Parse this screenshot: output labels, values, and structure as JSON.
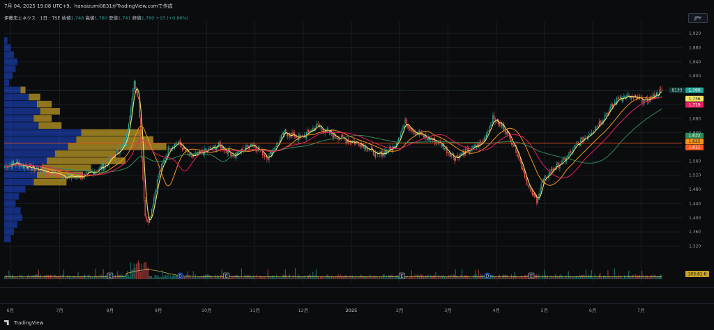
{
  "header": {
    "timestamp_line": "7月 04, 2025 19:08 UTC+9、hanaizumi0831がTradingView.comで作成"
  },
  "legend": {
    "symbol": "伊藤忠エネクス · 1日 · TSE",
    "open_label": "始値",
    "open": "1,748",
    "high_label": "高値",
    "high": "1,760",
    "low_label": "安値",
    "low": "1,741",
    "close_label": "終値",
    "close": "1,760",
    "change": "+15 (+0.86%)"
  },
  "currency": "JPY",
  "footer": {
    "brand": "TradingView"
  },
  "colors": {
    "up": "#26a69a",
    "down": "#ef5350",
    "ma_fast": "#f5e663",
    "ma_mid": "#f7931a",
    "ma_slow": "#2e8b57",
    "ma_long": "#e91e63",
    "hline": "#ff5722",
    "vp_blue": "#1e4bd8",
    "vp_gold": "#c9a227"
  },
  "chart_data": {
    "type": "candlestick",
    "title": "伊藤忠エネクス · 1日 · TSE",
    "xlabel": "",
    "ylabel": "",
    "ylim": [
      1260,
      1940
    ],
    "y_ticks": [
      1320,
      1360,
      1400,
      1440,
      1480,
      1520,
      1560,
      1600,
      1640,
      1680,
      1720,
      1760,
      1800,
      1840,
      1880,
      1920
    ],
    "x_labels": [
      "6月",
      "7月",
      "8月",
      "9月",
      "10月",
      "11月",
      "12月",
      "2025",
      "2月",
      "3月",
      "4月",
      "5月",
      "6月",
      "7月"
    ],
    "x_label_idx": [
      5,
      50,
      96,
      140,
      184,
      228,
      272,
      316,
      360,
      404,
      448,
      492,
      536,
      580
    ],
    "n_bars": 600,
    "close_anchors": [
      [
        0,
        1545
      ],
      [
        10,
        1555
      ],
      [
        25,
        1540
      ],
      [
        40,
        1530
      ],
      [
        60,
        1515
      ],
      [
        75,
        1520
      ],
      [
        90,
        1545
      ],
      [
        110,
        1610
      ],
      [
        118,
        1780
      ],
      [
        122,
        1740
      ],
      [
        128,
        1400
      ],
      [
        132,
        1395
      ],
      [
        140,
        1520
      ],
      [
        150,
        1600
      ],
      [
        158,
        1612
      ],
      [
        170,
        1570
      ],
      [
        185,
        1590
      ],
      [
        195,
        1605
      ],
      [
        210,
        1575
      ],
      [
        225,
        1610
      ],
      [
        240,
        1570
      ],
      [
        255,
        1640
      ],
      [
        270,
        1625
      ],
      [
        285,
        1660
      ],
      [
        295,
        1640
      ],
      [
        310,
        1620
      ],
      [
        325,
        1610
      ],
      [
        340,
        1575
      ],
      [
        355,
        1600
      ],
      [
        365,
        1670
      ],
      [
        375,
        1640
      ],
      [
        385,
        1625
      ],
      [
        395,
        1615
      ],
      [
        410,
        1570
      ],
      [
        420,
        1585
      ],
      [
        435,
        1610
      ],
      [
        445,
        1680
      ],
      [
        455,
        1655
      ],
      [
        465,
        1600
      ],
      [
        472,
        1540
      ],
      [
        478,
        1480
      ],
      [
        485,
        1450
      ],
      [
        490,
        1500
      ],
      [
        500,
        1540
      ],
      [
        510,
        1560
      ],
      [
        520,
        1600
      ],
      [
        530,
        1630
      ],
      [
        540,
        1660
      ],
      [
        550,
        1700
      ],
      [
        560,
        1740
      ],
      [
        570,
        1740
      ],
      [
        585,
        1730
      ],
      [
        599,
        1760
      ]
    ],
    "ohlc_last": {
      "open": 1748,
      "high": 1760,
      "low": 1741,
      "close": 1760
    },
    "horizontal_lines": [
      1611
    ],
    "price_labels": [
      {
        "value": 1760,
        "text": "1,760",
        "color": "#26a69a",
        "prefix": "8133"
      },
      {
        "value": 1736,
        "text": "1,736",
        "color": "#f5e663"
      },
      {
        "value": 1719,
        "text": "1,719",
        "color": "#e91e63"
      },
      {
        "value": 1632,
        "text": "1,632",
        "color": "#2e8b57"
      },
      {
        "value": 1625,
        "text": "1,625",
        "color": "#f7931a"
      },
      {
        "value": 1611,
        "text": "1,611",
        "color": "#ff5722"
      }
    ],
    "volume_label": "103.61 K",
    "volume_profile": [
      {
        "price": 1900,
        "blue": 2,
        "gold": 0
      },
      {
        "price": 1880,
        "blue": 4,
        "gold": 0
      },
      {
        "price": 1860,
        "blue": 6,
        "gold": 0
      },
      {
        "price": 1840,
        "blue": 8,
        "gold": 0
      },
      {
        "price": 1820,
        "blue": 7,
        "gold": 0
      },
      {
        "price": 1800,
        "blue": 5,
        "gold": 0
      },
      {
        "price": 1780,
        "blue": 3,
        "gold": 0
      },
      {
        "price": 1760,
        "blue": 10,
        "gold": 3
      },
      {
        "price": 1740,
        "blue": 15,
        "gold": 7
      },
      {
        "price": 1720,
        "blue": 20,
        "gold": 9
      },
      {
        "price": 1700,
        "blue": 22,
        "gold": 12
      },
      {
        "price": 1680,
        "blue": 18,
        "gold": 11
      },
      {
        "price": 1660,
        "blue": 21,
        "gold": 14
      },
      {
        "price": 1640,
        "blue": 47,
        "gold": 37
      },
      {
        "price": 1620,
        "blue": 44,
        "gold": 47
      },
      {
        "price": 1600,
        "blue": 39,
        "gold": 60
      },
      {
        "price": 1580,
        "blue": 31,
        "gold": 37
      },
      {
        "price": 1560,
        "blue": 26,
        "gold": 48
      },
      {
        "price": 1540,
        "blue": 23,
        "gold": 30
      },
      {
        "price": 1520,
        "blue": 20,
        "gold": 28
      },
      {
        "price": 1500,
        "blue": 18,
        "gold": 20
      },
      {
        "price": 1480,
        "blue": 13,
        "gold": 0
      },
      {
        "price": 1460,
        "blue": 9,
        "gold": 0
      },
      {
        "price": 1440,
        "blue": 7,
        "gold": 0
      },
      {
        "price": 1420,
        "blue": 10,
        "gold": 0
      },
      {
        "price": 1400,
        "blue": 11,
        "gold": 0
      },
      {
        "price": 1380,
        "blue": 8,
        "gold": 0
      },
      {
        "price": 1360,
        "blue": 6,
        "gold": 0
      },
      {
        "price": 1340,
        "blue": 4,
        "gold": 0
      }
    ],
    "events": [
      {
        "idx": 96,
        "type": "E"
      },
      {
        "idx": 160,
        "type": "D"
      },
      {
        "idx": 202,
        "type": "E"
      },
      {
        "idx": 362,
        "type": "E"
      },
      {
        "idx": 440,
        "type": "D"
      },
      {
        "idx": 480,
        "type": "E"
      }
    ]
  }
}
